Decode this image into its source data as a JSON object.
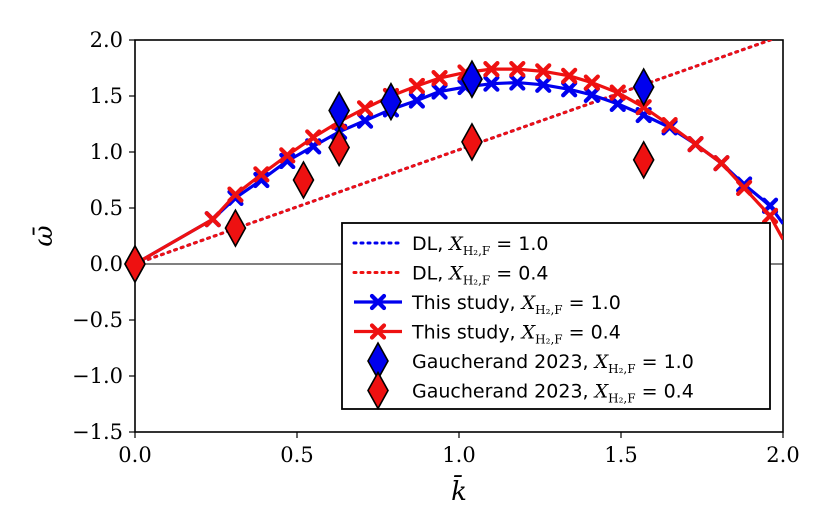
{
  "chart_data": {
    "type": "line",
    "title": "",
    "xlabel": "k̄",
    "ylabel": "ω̄",
    "xlim": [
      0.0,
      2.0
    ],
    "ylim": [
      -1.5,
      2.0
    ],
    "xticks": [
      "0.0",
      "0.5",
      "1.0",
      "1.5",
      "2.0"
    ],
    "yticks": [
      "−1.5",
      "−1.0",
      "−0.5",
      "0.0",
      "0.5",
      "1.0",
      "1.5",
      "2.0"
    ],
    "xtick_values": [
      0.0,
      0.5,
      1.0,
      1.5,
      2.0
    ],
    "ytick_values": [
      -1.5,
      -1.0,
      -0.5,
      0.0,
      0.5,
      1.0,
      1.5,
      2.0
    ],
    "legend_position": "lower right",
    "series": [
      {
        "name": "DL, X_H2,F = 1.0",
        "legend_prefix": "DL,",
        "legend_x": "1.0",
        "kind": "dotted-line",
        "color": "#0000ee",
        "x": [
          0.0,
          2.0
        ],
        "y": [
          0.0,
          2.04
        ]
      },
      {
        "name": "DL, X_H2,F = 0.4",
        "legend_prefix": "DL,",
        "legend_x": "0.4",
        "kind": "dotted-line",
        "color": "#ee1111",
        "x": [
          0.0,
          2.0
        ],
        "y": [
          0.0,
          2.04
        ]
      },
      {
        "name": "This study, X_H2,F = 1.0",
        "legend_prefix": "This study,",
        "legend_x": "1.0",
        "kind": "line-x",
        "color": "#0000ee",
        "x": [
          0.0,
          0.24,
          0.31,
          0.39,
          0.47,
          0.55,
          0.63,
          0.71,
          0.79,
          0.87,
          0.94,
          1.02,
          1.1,
          1.18,
          1.26,
          1.34,
          1.41,
          1.49,
          1.57,
          1.65,
          1.73,
          1.81,
          1.88,
          1.96,
          2.0
        ],
        "y": [
          0.0,
          0.4,
          0.59,
          0.75,
          0.92,
          1.05,
          1.18,
          1.28,
          1.38,
          1.46,
          1.54,
          1.58,
          1.61,
          1.62,
          1.6,
          1.56,
          1.51,
          1.43,
          1.33,
          1.22,
          1.07,
          0.9,
          0.71,
          0.52,
          0.36
        ]
      },
      {
        "name": "This study, X_H2,F = 0.4",
        "legend_prefix": "This study,",
        "legend_x": "0.4",
        "kind": "line-x",
        "color": "#ee1111",
        "x": [
          0.0,
          0.24,
          0.31,
          0.39,
          0.47,
          0.55,
          0.63,
          0.71,
          0.79,
          0.87,
          0.94,
          1.02,
          1.1,
          1.18,
          1.26,
          1.34,
          1.41,
          1.49,
          1.57,
          1.65,
          1.73,
          1.81,
          1.88,
          1.96,
          2.0
        ],
        "y": [
          0.0,
          0.4,
          0.62,
          0.8,
          0.97,
          1.13,
          1.27,
          1.39,
          1.5,
          1.59,
          1.66,
          1.71,
          1.74,
          1.74,
          1.72,
          1.68,
          1.62,
          1.53,
          1.4,
          1.24,
          1.07,
          0.9,
          0.68,
          0.43,
          0.22
        ]
      },
      {
        "name": "Gaucherand 2023, X_H2,F = 1.0",
        "legend_prefix": "Gaucherand 2023,",
        "legend_x": "1.0",
        "kind": "diamond",
        "color": "#0000ee",
        "x": [
          0.0,
          0.63,
          0.79,
          1.04,
          1.57
        ],
        "y": [
          0.0,
          1.37,
          1.45,
          1.65,
          1.58
        ]
      },
      {
        "name": "Gaucherand 2023, X_H2,F = 0.4",
        "legend_prefix": "Gaucherand 2023,",
        "legend_x": "0.4",
        "kind": "diamond",
        "color": "#ee1111",
        "x": [
          0.0,
          0.31,
          0.52,
          0.63,
          1.04,
          1.57
        ],
        "y": [
          0.0,
          0.32,
          0.75,
          1.04,
          1.09,
          0.93
        ]
      }
    ]
  }
}
